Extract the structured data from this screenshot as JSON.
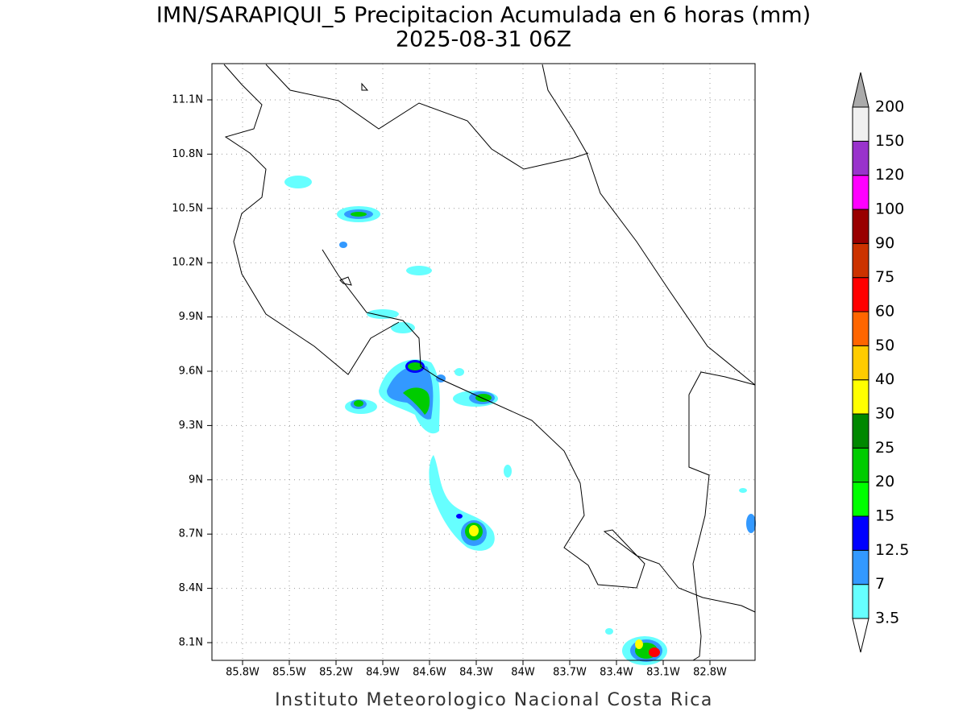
{
  "map": {
    "title": "IMN/SARAPIQUI_5 Precipitacion Acumulada en 6 horas (mm)",
    "subtitle": "2025-08-31 06Z",
    "xticks": [
      "85.8W",
      "85.5W",
      "85.2W",
      "84.9W",
      "84.6W",
      "84.3W",
      "84W",
      "83.7W",
      "83.4W",
      "83.1W",
      "82.8W"
    ],
    "yticks": [
      "11.1N",
      "10.8N",
      "10.5N",
      "10.2N",
      "9.9N",
      "9.6N",
      "9.3N",
      "9N",
      "8.7N",
      "8.4N",
      "8.1N"
    ],
    "colorbar": {
      "levels": [
        3.5,
        7,
        12.5,
        15,
        20,
        25,
        30,
        40,
        50,
        60,
        75,
        90,
        100,
        120,
        150,
        200
      ],
      "colors": [
        "#ffffff",
        "#66ffff",
        "#3399ff",
        "#0000ff",
        "#00ff00",
        "#00cc00",
        "#008800",
        "#ffff00",
        "#ffcc00",
        "#ff6600",
        "#ff0000",
        "#cc3300",
        "#990000",
        "#ff00ff",
        "#9933cc",
        "#f0f0f0",
        "#aaaaaa"
      ]
    },
    "footer": "Instituto Meteorologico Nacional Costa Rica"
  }
}
